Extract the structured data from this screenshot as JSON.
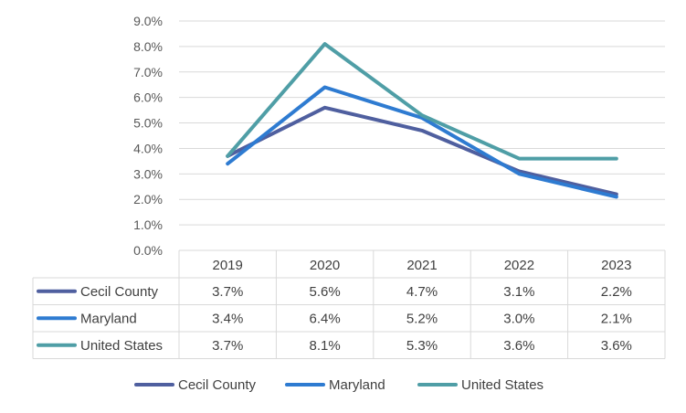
{
  "chart_data": {
    "type": "line",
    "title": "",
    "xlabel": "",
    "ylabel": "",
    "categories": [
      "2019",
      "2020",
      "2021",
      "2022",
      "2023"
    ],
    "ylim": [
      0,
      9
    ],
    "yticks": [
      "0.0%",
      "1.0%",
      "2.0%",
      "3.0%",
      "4.0%",
      "5.0%",
      "6.0%",
      "7.0%",
      "8.0%",
      "9.0%"
    ],
    "grid": true,
    "legend_position": "bottom",
    "data_table": true,
    "series": [
      {
        "name": "Cecil County",
        "color": "#4F5F9F",
        "values": [
          3.7,
          5.6,
          4.7,
          3.1,
          2.2
        ],
        "labels": [
          "3.7%",
          "5.6%",
          "4.7%",
          "3.1%",
          "2.2%"
        ]
      },
      {
        "name": "Maryland",
        "color": "#2E7BD1",
        "values": [
          3.4,
          6.4,
          5.2,
          3.0,
          2.1
        ],
        "labels": [
          "3.4%",
          "6.4%",
          "5.2%",
          "3.0%",
          "2.1%"
        ]
      },
      {
        "name": "United States",
        "color": "#4F9EA6",
        "values": [
          3.7,
          8.1,
          5.3,
          3.6,
          3.6
        ],
        "labels": [
          "3.7%",
          "8.1%",
          "5.3%",
          "3.6%",
          "3.6%"
        ]
      }
    ]
  }
}
